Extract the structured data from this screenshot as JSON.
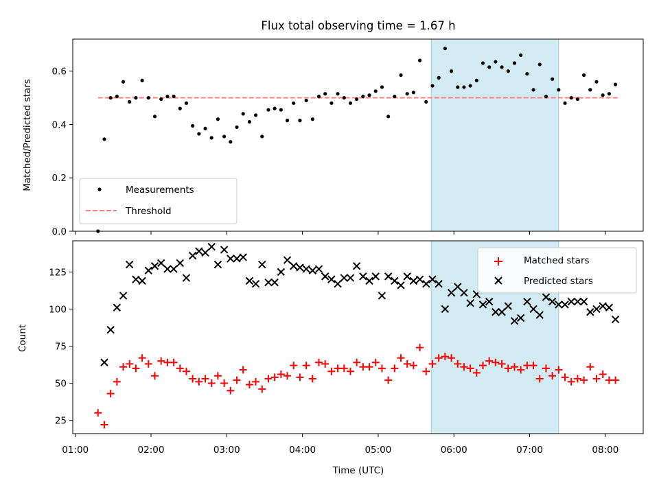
{
  "figure": {
    "title": "Flux total observing time = 1.67 h",
    "xlabel": "Time (UTC)"
  },
  "colors": {
    "measurement": "#000000",
    "threshold": "#ff7f7f",
    "matched": "#ff0000",
    "predicted": "#000000",
    "highlight": "#add8e6"
  },
  "chart_data": [
    {
      "type": "scatter",
      "panel": "top",
      "ylabel": "Matched/Predicted stars",
      "xlim": [
        "00:58",
        "08:30"
      ],
      "ylim": [
        0,
        0.72
      ],
      "x_ticks": [
        "01:00",
        "02:00",
        "03:00",
        "04:00",
        "05:00",
        "06:00",
        "07:00",
        "08:00"
      ],
      "y_ticks": [
        "0.0",
        "0.2",
        "0.4",
        "0.6"
      ],
      "highlight_span": [
        "05:42",
        "07:23"
      ],
      "threshold": {
        "name": "Threshold",
        "y": 0.5,
        "x_range": [
          "01:18",
          "08:10"
        ]
      },
      "legend": [
        "Measurements",
        "Threshold"
      ],
      "legend_position": "lower left",
      "series": [
        {
          "name": "Measurements",
          "marker": "dot",
          "x": [
            "01:18",
            "01:23",
            "01:28",
            "01:33",
            "01:38",
            "01:43",
            "01:48",
            "01:53",
            "01:58",
            "02:03",
            "02:08",
            "02:13",
            "02:18",
            "02:23",
            "02:28",
            "02:33",
            "02:38",
            "02:43",
            "02:48",
            "02:53",
            "02:58",
            "03:03",
            "03:08",
            "03:13",
            "03:18",
            "03:23",
            "03:28",
            "03:33",
            "03:38",
            "03:43",
            "03:48",
            "03:53",
            "03:58",
            "04:03",
            "04:08",
            "04:13",
            "04:18",
            "04:23",
            "04:28",
            "04:33",
            "04:38",
            "04:43",
            "04:48",
            "04:53",
            "04:58",
            "05:03",
            "05:08",
            "05:13",
            "05:18",
            "05:23",
            "05:28",
            "05:33",
            "05:38",
            "05:43",
            "05:48",
            "05:53",
            "05:58",
            "06:03",
            "06:08",
            "06:13",
            "06:18",
            "06:23",
            "06:28",
            "06:33",
            "06:38",
            "06:43",
            "06:48",
            "06:53",
            "06:58",
            "07:03",
            "07:08",
            "07:13",
            "07:18",
            "07:23",
            "07:28",
            "07:33",
            "07:38",
            "07:43",
            "07:48",
            "07:53",
            "07:58",
            "08:03",
            "08:08"
          ],
          "y": [
            0.0,
            0.345,
            0.5,
            0.505,
            0.56,
            0.485,
            0.5,
            0.565,
            0.5,
            0.43,
            0.495,
            0.505,
            0.505,
            0.46,
            0.48,
            0.395,
            0.365,
            0.385,
            0.35,
            0.42,
            0.355,
            0.335,
            0.39,
            0.44,
            0.41,
            0.435,
            0.355,
            0.455,
            0.46,
            0.455,
            0.415,
            0.48,
            0.415,
            0.49,
            0.42,
            0.505,
            0.515,
            0.48,
            0.515,
            0.5,
            0.48,
            0.495,
            0.505,
            0.51,
            0.525,
            0.54,
            0.43,
            0.505,
            0.585,
            0.515,
            0.52,
            0.64,
            0.485,
            0.545,
            0.575,
            0.685,
            0.6,
            0.54,
            0.54,
            0.545,
            0.565,
            0.63,
            0.615,
            0.635,
            0.615,
            0.6,
            0.63,
            0.66,
            0.59,
            0.53,
            0.625,
            0.505,
            0.57,
            0.53,
            0.48,
            0.5,
            0.495,
            0.585,
            0.53,
            0.56,
            0.51,
            0.515,
            0.55
          ]
        }
      ]
    },
    {
      "type": "scatter",
      "panel": "bottom",
      "ylabel": "Count",
      "xlabel": "Time (UTC)",
      "xlim": [
        "00:58",
        "08:30"
      ],
      "ylim": [
        16,
        146
      ],
      "x_ticks": [
        "01:00",
        "02:00",
        "03:00",
        "04:00",
        "05:00",
        "06:00",
        "07:00",
        "08:00"
      ],
      "y_ticks": [
        "25",
        "50",
        "75",
        "100",
        "125"
      ],
      "highlight_span": [
        "05:42",
        "07:23"
      ],
      "legend": [
        "Matched stars",
        "Predicted stars"
      ],
      "legend_position": "upper right",
      "series": [
        {
          "name": "Matched stars",
          "marker": "plus",
          "x": [
            "01:18",
            "01:23",
            "01:28",
            "01:33",
            "01:38",
            "01:43",
            "01:48",
            "01:53",
            "01:58",
            "02:03",
            "02:08",
            "02:13",
            "02:18",
            "02:23",
            "02:28",
            "02:33",
            "02:38",
            "02:43",
            "02:48",
            "02:53",
            "02:58",
            "03:03",
            "03:08",
            "03:13",
            "03:18",
            "03:23",
            "03:28",
            "03:33",
            "03:38",
            "03:43",
            "03:48",
            "03:53",
            "03:58",
            "04:03",
            "04:08",
            "04:13",
            "04:18",
            "04:23",
            "04:28",
            "04:33",
            "04:38",
            "04:43",
            "04:48",
            "04:53",
            "04:58",
            "05:03",
            "05:08",
            "05:13",
            "05:18",
            "05:23",
            "05:28",
            "05:33",
            "05:38",
            "05:43",
            "05:48",
            "05:53",
            "05:58",
            "06:03",
            "06:08",
            "06:13",
            "06:18",
            "06:23",
            "06:28",
            "06:33",
            "06:38",
            "06:43",
            "06:48",
            "06:53",
            "06:58",
            "07:03",
            "07:08",
            "07:13",
            "07:18",
            "07:23",
            "07:28",
            "07:33",
            "07:38",
            "07:43",
            "07:48",
            "07:53",
            "07:58",
            "08:03",
            "08:08"
          ],
          "y": [
            30,
            22,
            43,
            51,
            61,
            63,
            60,
            67,
            63,
            55,
            65,
            64,
            64,
            60,
            58,
            53,
            51,
            53,
            50,
            55,
            50,
            45,
            52,
            59,
            49,
            51,
            46,
            53,
            54,
            56,
            55,
            62,
            54,
            62,
            53,
            64,
            63,
            58,
            60,
            60,
            58,
            64,
            61,
            61,
            64,
            60,
            52,
            60,
            67,
            63,
            62,
            74,
            58,
            63,
            67,
            68,
            67,
            63,
            61,
            60,
            57,
            62,
            65,
            64,
            63,
            60,
            61,
            59,
            62,
            62,
            53,
            60,
            55,
            59,
            54,
            51,
            53,
            52,
            61,
            53,
            56,
            52,
            52
          ]
        },
        {
          "name": "Predicted stars",
          "marker": "x",
          "x": [
            "01:23",
            "01:28",
            "01:33",
            "01:38",
            "01:43",
            "01:48",
            "01:53",
            "01:58",
            "02:03",
            "02:08",
            "02:13",
            "02:18",
            "02:23",
            "02:28",
            "02:33",
            "02:38",
            "02:43",
            "02:48",
            "02:53",
            "02:58",
            "03:03",
            "03:08",
            "03:13",
            "03:18",
            "03:23",
            "03:28",
            "03:33",
            "03:38",
            "03:43",
            "03:48",
            "03:53",
            "03:58",
            "04:03",
            "04:08",
            "04:13",
            "04:18",
            "04:23",
            "04:28",
            "04:33",
            "04:38",
            "04:43",
            "04:48",
            "04:53",
            "04:58",
            "05:03",
            "05:08",
            "05:13",
            "05:18",
            "05:23",
            "05:28",
            "05:33",
            "05:38",
            "05:43",
            "05:48",
            "05:53",
            "05:58",
            "06:03",
            "06:08",
            "06:13",
            "06:18",
            "06:23",
            "06:28",
            "06:33",
            "06:38",
            "06:43",
            "06:48",
            "06:53",
            "06:58",
            "07:03",
            "07:08",
            "07:13",
            "07:18",
            "07:23",
            "07:28",
            "07:33",
            "07:38",
            "07:43",
            "07:48",
            "07:53",
            "07:58",
            "08:03",
            "08:08"
          ],
          "y": [
            64,
            86,
            101,
            109,
            130,
            120,
            119,
            126,
            129,
            131,
            127,
            127,
            131,
            121,
            136,
            139,
            138,
            142,
            130,
            140,
            134,
            134,
            135,
            119,
            117,
            130,
            118,
            118,
            125,
            133,
            129,
            128,
            127,
            126,
            127,
            122,
            120,
            117,
            121,
            121,
            129,
            122,
            119,
            122,
            109,
            122,
            119,
            116,
            122,
            119,
            120,
            117,
            120,
            117,
            100,
            111,
            115,
            111,
            104,
            110,
            103,
            105,
            98,
            98,
            102,
            92,
            94,
            105,
            100,
            96,
            108,
            105,
            103,
            103,
            105,
            105,
            105,
            98,
            100,
            102,
            101,
            93
          ]
        }
      ]
    }
  ]
}
